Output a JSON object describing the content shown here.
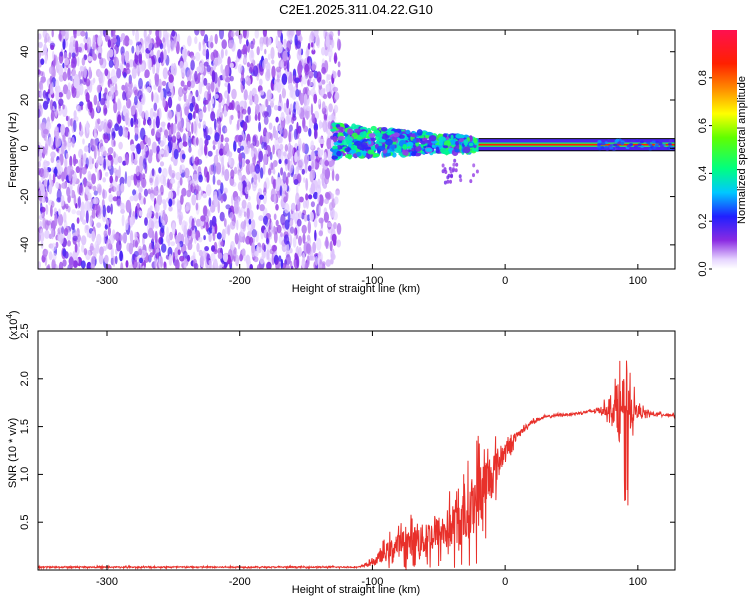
{
  "title": "C2E1.2025.311.04.22.G10",
  "chart_data": [
    {
      "type": "heatmap",
      "name": "spectrogram",
      "xlabel": "Height of straight line (km)",
      "ylabel": "Frequency (Hz)",
      "xlim": [
        -352,
        128
      ],
      "ylim": [
        -50,
        49
      ],
      "xticks": [
        -300,
        -200,
        -100,
        0,
        100
      ],
      "xtick_labels": [
        "-300",
        "-200",
        "-100",
        "0",
        "100"
      ],
      "yticks": [
        -40,
        -20,
        0,
        20,
        40
      ],
      "ytick_labels": [
        "-40",
        "-20",
        "0",
        "20",
        "40"
      ],
      "colorbar": {
        "label": "Normalized spectral amplitude",
        "range": [
          0,
          1
        ],
        "ticks": [
          0.0,
          0.2,
          0.4,
          0.6,
          0.8
        ],
        "tick_labels": [
          "0.0",
          "0.2",
          "0.4",
          "0.6",
          "0.8"
        ]
      },
      "regions": [
        {
          "x_range": [
            -352,
            -125
          ],
          "y_range": [
            -50,
            49
          ],
          "description": "broadband noise",
          "amplitude_range": [
            0.0,
            0.15
          ]
        },
        {
          "x_range": [
            -130,
            -20
          ],
          "y_center": 3,
          "y_halfwidth": 7,
          "description": "scattered signal",
          "amplitude_range": [
            0.1,
            0.5
          ]
        },
        {
          "x_range": [
            -20,
            128
          ],
          "y_center": 1.5,
          "y_halfwidth": 1.5,
          "description": "strong carrier tone",
          "amplitude_range": [
            0.7,
            0.9
          ]
        }
      ],
      "carrier_frequency_hz": 1.5
    },
    {
      "type": "line",
      "name": "snr",
      "xlabel": "Height of straight line (km)",
      "ylabel": "SNR (10 * v/v)",
      "y_scale_label": "(x10",
      "y_scale_exponent": "4",
      "y_scale": 10000,
      "xlim": [
        -352,
        128
      ],
      "ylim": [
        0,
        2.5
      ],
      "xticks": [
        -300,
        -200,
        -100,
        0,
        100
      ],
      "xtick_labels": [
        "-300",
        "-200",
        "-100",
        "0",
        "100"
      ],
      "yticks": [
        0.5,
        1.0,
        1.5,
        2.0,
        2.5
      ],
      "ytick_labels": [
        "0.5",
        "1.0",
        "1.5",
        "2.0",
        "2.5"
      ],
      "color": "#e8302a",
      "series": [
        {
          "name": "SNR",
          "x": [
            -352,
            -300,
            -250,
            -200,
            -150,
            -110,
            -100,
            -90,
            -80,
            -70,
            -60,
            -50,
            -40,
            -30,
            -20,
            -10,
            0,
            10,
            20,
            30,
            40,
            50,
            60,
            70,
            80,
            85,
            90,
            95,
            100,
            110,
            128
          ],
          "y": [
            0.03,
            0.03,
            0.03,
            0.03,
            0.03,
            0.03,
            0.08,
            0.18,
            0.27,
            0.3,
            0.32,
            0.38,
            0.45,
            0.55,
            0.78,
            1.0,
            1.25,
            1.42,
            1.55,
            1.6,
            1.62,
            1.63,
            1.65,
            1.67,
            1.68,
            1.7,
            1.65,
            1.68,
            1.66,
            1.63,
            1.62
          ],
          "noise_amplitude": [
            0.01,
            0.01,
            0.01,
            0.01,
            0.01,
            0.01,
            0.04,
            0.15,
            0.22,
            0.25,
            0.28,
            0.32,
            0.38,
            0.45,
            0.6,
            0.4,
            0.15,
            0.05,
            0.03,
            0.02,
            0.02,
            0.02,
            0.02,
            0.04,
            0.15,
            0.45,
            0.6,
            0.3,
            0.1,
            0.03,
            0.02
          ]
        }
      ]
    }
  ]
}
